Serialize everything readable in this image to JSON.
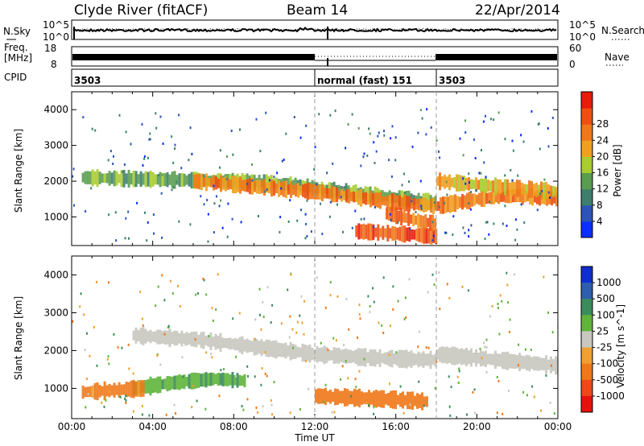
{
  "header": {
    "station": "Clyde River (fitACF)",
    "beam": "Beam 14",
    "date": "22/Apr/2014"
  },
  "top_panels": {
    "nsky_label": "N.Sky",
    "nsearch_label": "N.Search",
    "noise_ticks_left": [
      "10^5",
      "10^0"
    ],
    "noise_ticks_right": [
      "10^5",
      "10^0"
    ],
    "freq_label_1": "Freq.",
    "freq_label_2": "[MHz]",
    "freq_ticks": [
      "18",
      "8"
    ],
    "nave_label": "Nave",
    "nave_ticks": [
      "60",
      "0"
    ],
    "cpid_label": "CPID",
    "cpid_segments": [
      {
        "start_hour": 0,
        "label": "3503"
      },
      {
        "start_hour": 12,
        "label": "normal (fast) 151"
      },
      {
        "start_hour": 18,
        "label": "3503"
      }
    ]
  },
  "x_ticks": [
    "00:00",
    "04:00",
    "08:00",
    "12:00",
    "16:00",
    "20:00",
    "00:00"
  ],
  "x_label": "Time UT",
  "chart_data": [
    {
      "type": "heatmap",
      "title": "",
      "quantity": "Power",
      "ylabel": "Slant Range [km]",
      "yticks": [
        "1000",
        "2000",
        "3000",
        "4000"
      ],
      "ylim": [
        200,
        4500
      ],
      "xlim_hours": [
        0,
        24
      ],
      "colorbar": {
        "label": "Power [dB]",
        "ticks": [
          "4",
          "8",
          "12",
          "16",
          "20",
          "24",
          "28"
        ],
        "colors": [
          "#0a2eff",
          "#2c54b8",
          "#3d7f6c",
          "#5a9c50",
          "#a9cc2e",
          "#f0a020",
          "#f07818",
          "#ee4f10",
          "#e81a0a"
        ]
      },
      "bands": [
        {
          "t": [
            0.5,
            4,
            8,
            11,
            12,
            15,
            18
          ],
          "range": [
            2100,
            2050,
            2000,
            1900,
            1800,
            1600,
            1400
          ],
          "level": 14
        },
        {
          "t": [
            6,
            9,
            12,
            14,
            16,
            18,
            20,
            22,
            24
          ],
          "range": [
            2000,
            1850,
            1700,
            1550,
            1400,
            1300,
            1500,
            1600,
            1500
          ],
          "level": 24
        },
        {
          "t": [
            14,
            15.5,
            17,
            18
          ],
          "range": [
            600,
            550,
            500,
            450
          ],
          "level": 28
        },
        {
          "t": [
            15.5,
            17,
            18
          ],
          "range": [
            1100,
            900,
            800
          ],
          "level": 26
        },
        {
          "t": [
            18,
            20,
            22,
            24
          ],
          "range": [
            2000,
            1900,
            1800,
            1700
          ],
          "level": 20
        }
      ]
    },
    {
      "type": "heatmap",
      "title": "",
      "quantity": "Velocity",
      "ylabel": "Slant Range [km]",
      "yticks": [
        "1000",
        "2000",
        "3000",
        "4000"
      ],
      "ylim": [
        200,
        4500
      ],
      "xlim_hours": [
        0,
        24
      ],
      "colorbar": {
        "label": "Velocity  [m s^-1]",
        "ticks": [
          "1000",
          "500",
          "100",
          "25",
          "-25",
          "-100",
          "-500",
          "-1000"
        ],
        "colors": [
          "#0f2ecf",
          "#2d5fae",
          "#3a8c5c",
          "#5fb43a",
          "#c8c8c0",
          "#f0a030",
          "#f07818",
          "#f04818",
          "#e8120c"
        ]
      },
      "bands": [
        {
          "t": [
            3,
            6,
            9,
            12,
            15,
            18
          ],
          "range": [
            2400,
            2300,
            2100,
            1900,
            1800,
            1750
          ],
          "level": 0
        },
        {
          "t": [
            3,
            5,
            7,
            8.5
          ],
          "range": [
            1000,
            1150,
            1250,
            1200
          ],
          "level": 80
        },
        {
          "t": [
            0.5,
            2,
            3.5
          ],
          "range": [
            900,
            950,
            1000
          ],
          "level": -150
        },
        {
          "t": [
            12,
            14,
            16,
            17.5
          ],
          "range": [
            800,
            750,
            700,
            650
          ],
          "level": -300
        },
        {
          "t": [
            18,
            20,
            22,
            24
          ],
          "range": [
            1900,
            1800,
            1700,
            1600
          ],
          "level": 0
        }
      ]
    }
  ]
}
